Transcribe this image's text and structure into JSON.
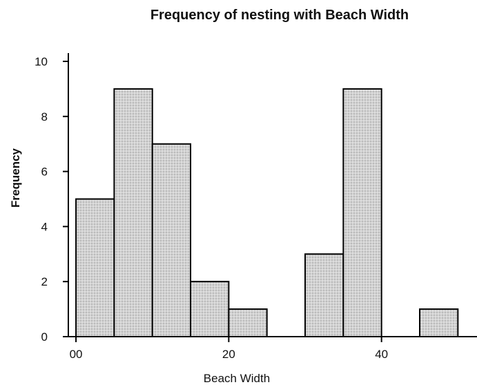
{
  "chart_data": {
    "type": "bar",
    "title": "Frequency of nesting with Beach Width",
    "xlabel": "Beach Width",
    "ylabel": "Frequency",
    "bin_edges": [
      0,
      5,
      10,
      15,
      20,
      25,
      30,
      35,
      40,
      45,
      50
    ],
    "values": [
      5,
      9,
      7,
      2,
      1,
      0,
      3,
      9,
      0,
      1
    ],
    "xlim": [
      -1,
      52.5
    ],
    "ylim": [
      0,
      10.3
    ],
    "x_ticks": [
      0,
      20,
      40
    ],
    "x_tick_labels": [
      "00",
      "20",
      "40"
    ],
    "y_ticks": [
      0,
      2,
      4,
      6,
      8,
      10
    ],
    "y_tick_labels": [
      "0",
      "2",
      "4",
      "6",
      "8",
      "10"
    ],
    "bar_fill": "#cfcfcf",
    "bar_stroke": "#000000",
    "grid": false
  }
}
